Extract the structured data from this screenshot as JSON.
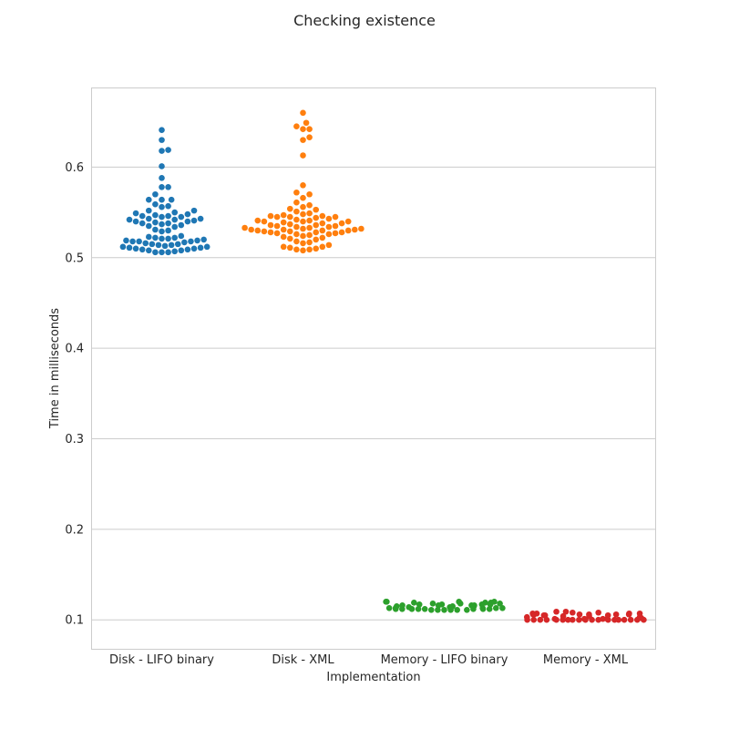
{
  "chart_data": {
    "type": "scatter",
    "subtype": "swarm",
    "title": "Checking existence",
    "xlabel": "Implementation",
    "ylabel": "Time in milliseconds",
    "categories": [
      "Disk - LIFO binary",
      "Disk - XML",
      "Memory - LIFO binary",
      "Memory - XML"
    ],
    "ylim": [
      0.068,
      0.688
    ],
    "yticks": [
      0.1,
      0.2,
      0.3,
      0.4,
      0.5,
      0.6
    ],
    "ytick_labels": [
      "0.1",
      "0.2",
      "0.3",
      "0.4",
      "0.5",
      "0.6"
    ],
    "grid": true,
    "legend": "none",
    "series": [
      {
        "category": "Disk - LIFO binary",
        "color": "#1f77b4",
        "values": [
          0.641,
          0.63,
          0.619,
          0.618,
          0.601,
          0.588,
          0.578,
          0.578,
          0.57,
          0.564,
          0.564,
          0.564,
          0.559,
          0.557,
          0.556,
          0.552,
          0.552,
          0.55,
          0.549,
          0.548,
          0.547,
          0.546,
          0.546,
          0.545,
          0.545,
          0.543,
          0.543,
          0.542,
          0.542,
          0.541,
          0.54,
          0.54,
          0.539,
          0.538,
          0.538,
          0.537,
          0.536,
          0.535,
          0.534,
          0.531,
          0.53,
          0.529,
          0.524,
          0.523,
          0.522,
          0.522,
          0.521,
          0.521,
          0.52,
          0.519,
          0.519,
          0.518,
          0.518,
          0.518,
          0.517,
          0.516,
          0.515,
          0.515,
          0.514,
          0.514,
          0.513,
          0.512,
          0.512,
          0.511,
          0.511,
          0.51,
          0.51,
          0.509,
          0.509,
          0.508,
          0.508,
          0.507,
          0.506,
          0.506,
          0.506
        ]
      },
      {
        "category": "Disk - XML",
        "color": "#ff7f0e",
        "values": [
          0.66,
          0.649,
          0.645,
          0.642,
          0.642,
          0.633,
          0.63,
          0.613,
          0.58,
          0.572,
          0.57,
          0.566,
          0.561,
          0.558,
          0.556,
          0.554,
          0.553,
          0.551,
          0.549,
          0.548,
          0.547,
          0.546,
          0.546,
          0.545,
          0.545,
          0.545,
          0.544,
          0.543,
          0.542,
          0.541,
          0.541,
          0.54,
          0.54,
          0.54,
          0.539,
          0.538,
          0.538,
          0.537,
          0.536,
          0.536,
          0.535,
          0.535,
          0.534,
          0.534,
          0.533,
          0.533,
          0.532,
          0.532,
          0.531,
          0.531,
          0.531,
          0.53,
          0.53,
          0.53,
          0.529,
          0.529,
          0.528,
          0.528,
          0.528,
          0.527,
          0.527,
          0.526,
          0.526,
          0.525,
          0.524,
          0.523,
          0.522,
          0.521,
          0.52,
          0.518,
          0.517,
          0.516,
          0.514,
          0.512,
          0.512,
          0.511,
          0.51,
          0.509,
          0.509,
          0.508
        ]
      },
      {
        "category": "Memory - LIFO binary",
        "color": "#2ca02c",
        "values": [
          0.12,
          0.12,
          0.12,
          0.12,
          0.119,
          0.119,
          0.119,
          0.118,
          0.118,
          0.118,
          0.117,
          0.117,
          0.117,
          0.117,
          0.116,
          0.116,
          0.116,
          0.116,
          0.115,
          0.115,
          0.115,
          0.114,
          0.114,
          0.113,
          0.113,
          0.113,
          0.113,
          0.113,
          0.112,
          0.112,
          0.112,
          0.112,
          0.112,
          0.112,
          0.112,
          0.112,
          0.111,
          0.111,
          0.111,
          0.111,
          0.111,
          0.111
        ]
      },
      {
        "category": "Memory - XML",
        "color": "#d62728",
        "values": [
          0.109,
          0.109,
          0.108,
          0.108,
          0.107,
          0.107,
          0.107,
          0.107,
          0.106,
          0.106,
          0.106,
          0.106,
          0.106,
          0.106,
          0.105,
          0.105,
          0.105,
          0.104,
          0.104,
          0.103,
          0.103,
          0.102,
          0.101,
          0.101,
          0.101,
          0.101,
          0.1,
          0.1,
          0.1,
          0.1,
          0.1,
          0.1,
          0.1,
          0.1,
          0.1,
          0.1,
          0.1,
          0.1,
          0.1,
          0.1,
          0.1,
          0.1,
          0.1,
          0.1,
          0.1
        ]
      }
    ]
  }
}
